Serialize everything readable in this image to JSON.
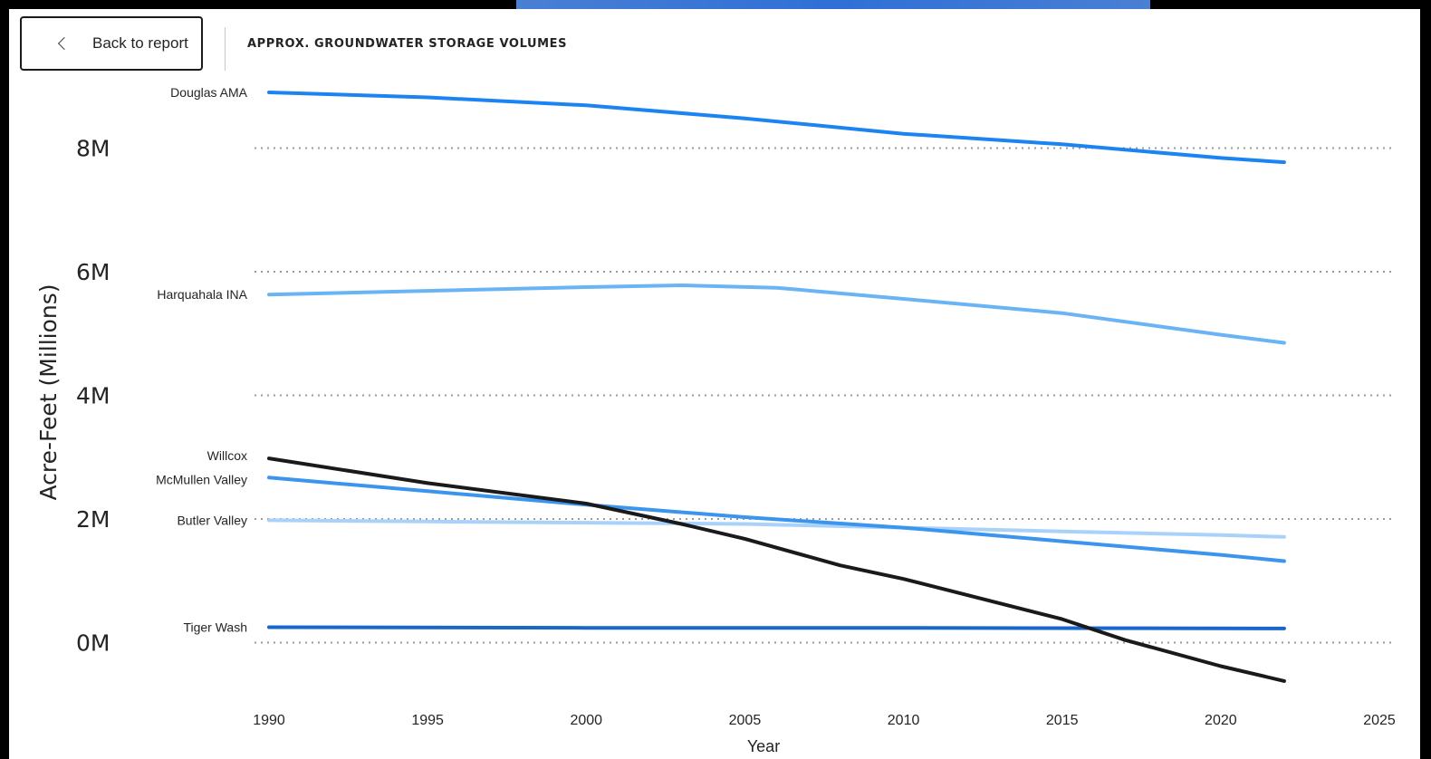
{
  "header": {
    "back_label": "Back to report",
    "title": "APPROX. GROUNDWATER STORAGE VOLUMES"
  },
  "chart_data": {
    "type": "line",
    "title": "APPROX. GROUNDWATER STORAGE VOLUMES",
    "xlabel": "Year",
    "ylabel": "Acre-Feet (Millions)",
    "xlim": [
      1990,
      2025
    ],
    "ylim": [
      -0.9,
      8.9
    ],
    "x_ticks": [
      1990,
      1995,
      2000,
      2005,
      2010,
      2015,
      2020,
      2025
    ],
    "y_ticks": [
      0,
      2,
      4,
      6,
      8
    ],
    "y_tick_labels": [
      "0M",
      "2M",
      "4M",
      "6M",
      "8M"
    ],
    "grid": "horizontal-dotted",
    "legend": "none",
    "series": [
      {
        "name": "Douglas AMA",
        "color": "#1c84f2",
        "points": [
          [
            1990,
            8.9
          ],
          [
            1995,
            8.82
          ],
          [
            2000,
            8.69
          ],
          [
            2005,
            8.48
          ],
          [
            2010,
            8.23
          ],
          [
            2015,
            8.06
          ],
          [
            2020,
            7.84
          ],
          [
            2022,
            7.77
          ]
        ]
      },
      {
        "name": "Harquahala INA",
        "color": "#6ab4f6",
        "points": [
          [
            1990,
            5.63
          ],
          [
            1995,
            5.69
          ],
          [
            2000,
            5.75
          ],
          [
            2003,
            5.78
          ],
          [
            2006,
            5.74
          ],
          [
            2010,
            5.56
          ],
          [
            2015,
            5.33
          ],
          [
            2020,
            4.98
          ],
          [
            2022,
            4.85
          ]
        ]
      },
      {
        "name": "Willcox",
        "color": "#1a1a1a",
        "points": [
          [
            1990,
            2.98
          ],
          [
            1995,
            2.58
          ],
          [
            2000,
            2.25
          ],
          [
            2003,
            1.92
          ],
          [
            2005,
            1.68
          ],
          [
            2008,
            1.25
          ],
          [
            2010,
            1.03
          ],
          [
            2015,
            0.38
          ],
          [
            2017,
            0.04
          ],
          [
            2020,
            -0.38
          ],
          [
            2022,
            -0.62
          ]
        ]
      },
      {
        "name": "McMullen Valley",
        "color": "#3b95ee",
        "points": [
          [
            1990,
            2.67
          ],
          [
            1995,
            2.45
          ],
          [
            2000,
            2.23
          ],
          [
            2005,
            2.03
          ],
          [
            2010,
            1.86
          ],
          [
            2015,
            1.64
          ],
          [
            2020,
            1.42
          ],
          [
            2022,
            1.32
          ]
        ]
      },
      {
        "name": "Butler Valley",
        "color": "#a9d2fa",
        "points": [
          [
            1990,
            1.98
          ],
          [
            1995,
            1.96
          ],
          [
            2000,
            1.94
          ],
          [
            2005,
            1.92
          ],
          [
            2010,
            1.86
          ],
          [
            2015,
            1.8
          ],
          [
            2020,
            1.74
          ],
          [
            2022,
            1.71
          ]
        ]
      },
      {
        "name": "Tiger Wash",
        "color": "#1967c9",
        "points": [
          [
            1990,
            0.25
          ],
          [
            2000,
            0.24
          ],
          [
            2010,
            0.24
          ],
          [
            2022,
            0.23
          ]
        ]
      }
    ]
  }
}
